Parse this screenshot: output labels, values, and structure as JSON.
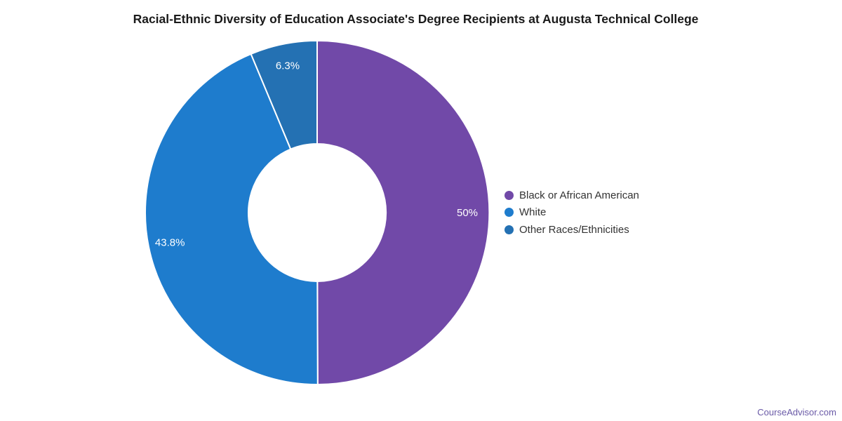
{
  "title": "Racial-Ethnic Diversity of Education Associate's Degree Recipients at Augusta Technical College",
  "footer": {
    "brand": "CourseAdvisor.com",
    "brand_color": "#6a5aa7"
  },
  "chart_data": {
    "type": "pie",
    "subtype": "donut",
    "title": "Racial-Ethnic Diversity of Education Associate's Degree Recipients at Augusta Technical College",
    "categories": [
      "Black or African American",
      "White",
      "Other Races/Ethnicities"
    ],
    "values": [
      50,
      43.8,
      6.3
    ],
    "value_labels": [
      "50%",
      "43.8%",
      "6.3%"
    ],
    "colors": [
      "#7149a8",
      "#1e7ccd",
      "#2471b3"
    ],
    "label_color": "#ffffff",
    "slice_border_color": "#ffffff",
    "legend_position": "right",
    "start_angle_deg": 0,
    "clockwise": true,
    "inner_radius_ratio": 0.4,
    "grid": false
  }
}
